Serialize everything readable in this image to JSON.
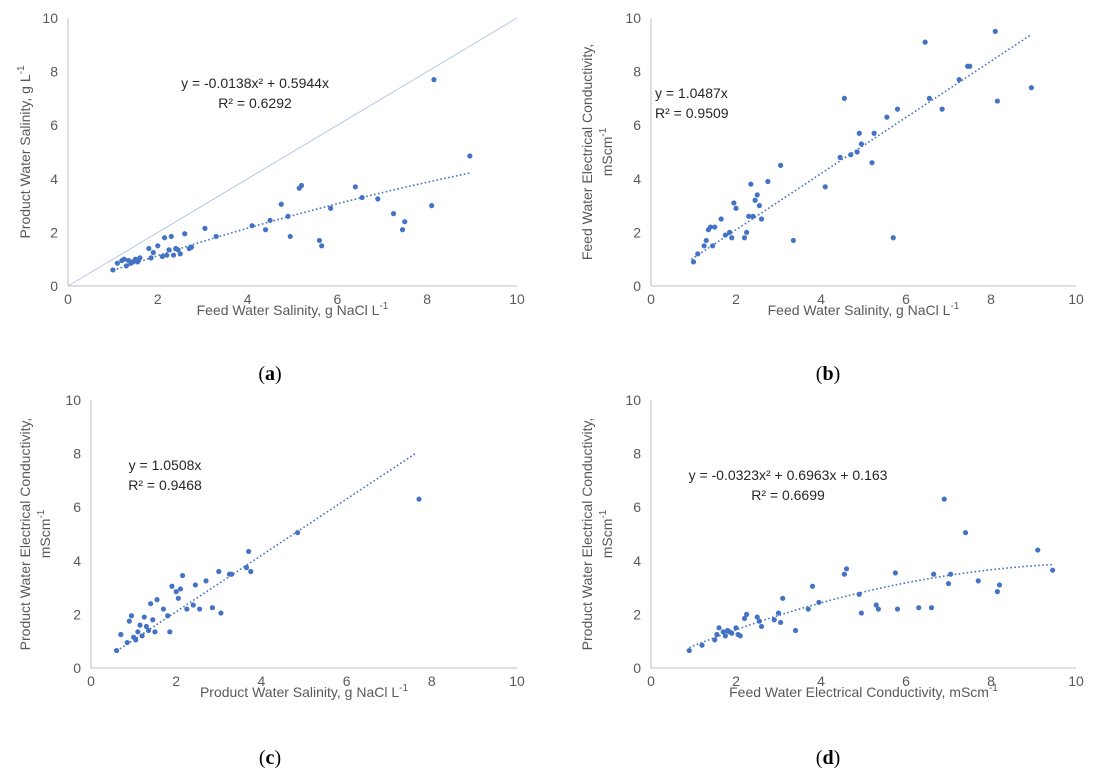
{
  "chart_data": [
    {
      "panel": "a",
      "type": "scatter",
      "xlabel": "Feed Water Salinity, g NaCl L",
      "xlabel_sup": "-1",
      "ylabel": "Product Water Salinity, g L",
      "ylabel_sup": "-1",
      "ylabel2": "",
      "xlim": [
        0,
        10
      ],
      "ylim": [
        0,
        10
      ],
      "xticks": [
        0,
        2,
        4,
        6,
        8,
        10
      ],
      "yticks": [
        0,
        2,
        4,
        6,
        8,
        10
      ],
      "grid": false,
      "equation": "y = -0.0138x² + 0.5944x",
      "r2": "R² = 0.6292",
      "trend": {
        "kind": "poly",
        "coef": [
          0,
          0.5944,
          -0.0138
        ],
        "xrange": [
          1.0,
          8.95
        ]
      },
      "identity_line": true,
      "x": [
        1.0,
        1.1,
        1.2,
        1.25,
        1.3,
        1.35,
        1.4,
        1.45,
        1.5,
        1.55,
        1.6,
        1.8,
        1.85,
        1.9,
        2.0,
        2.1,
        2.15,
        2.2,
        2.25,
        2.3,
        2.35,
        2.4,
        2.45,
        2.5,
        2.6,
        2.7,
        2.75,
        3.05,
        3.3,
        4.1,
        4.4,
        4.5,
        4.75,
        4.9,
        4.95,
        5.15,
        5.2,
        5.6,
        5.65,
        5.85,
        6.4,
        6.55,
        6.9,
        7.25,
        7.45,
        7.5,
        8.1,
        8.15,
        8.95
      ],
      "y": [
        0.6,
        0.85,
        0.95,
        1.0,
        0.75,
        0.95,
        0.85,
        0.9,
        1.0,
        0.9,
        1.05,
        1.4,
        1.05,
        1.25,
        1.5,
        1.1,
        1.8,
        1.15,
        1.35,
        1.85,
        1.15,
        1.4,
        1.35,
        1.2,
        1.95,
        1.4,
        1.45,
        2.15,
        1.85,
        2.25,
        2.1,
        2.45,
        3.05,
        2.6,
        1.85,
        3.65,
        3.75,
        1.7,
        1.5,
        2.9,
        3.7,
        3.3,
        3.25,
        2.7,
        2.1,
        2.4,
        3.0,
        7.7,
        4.85
      ]
    },
    {
      "panel": "b",
      "type": "scatter",
      "xlabel": "Feed Water Salinity, g NaCl L",
      "xlabel_sup": "-1",
      "ylabel": "Feed Water Electrical Conductivity,",
      "ylabel2": "mScm",
      "ylabel2_sup": "-1",
      "xlim": [
        0,
        10
      ],
      "ylim": [
        0,
        10
      ],
      "xticks": [
        0,
        2,
        4,
        6,
        8,
        10
      ],
      "yticks": [
        0,
        2,
        4,
        6,
        8,
        10
      ],
      "grid": false,
      "equation": "y = 1.0487x",
      "r2": "R² = 0.9509",
      "trend": {
        "kind": "poly",
        "coef": [
          0,
          1.0487
        ],
        "xrange": [
          0.95,
          8.95
        ]
      },
      "identity_line": false,
      "x": [
        1.0,
        1.1,
        1.25,
        1.3,
        1.35,
        1.4,
        1.45,
        1.5,
        1.65,
        1.75,
        1.85,
        1.9,
        1.95,
        2.0,
        2.2,
        2.25,
        2.3,
        2.35,
        2.4,
        2.45,
        2.5,
        2.55,
        2.6,
        2.75,
        3.05,
        3.35,
        4.1,
        4.45,
        4.55,
        4.7,
        4.85,
        4.9,
        4.95,
        5.2,
        5.25,
        5.55,
        5.7,
        5.8,
        6.45,
        6.55,
        6.85,
        7.25,
        7.45,
        7.5,
        8.1,
        8.15,
        8.95
      ],
      "y": [
        0.9,
        1.2,
        1.5,
        1.7,
        2.1,
        2.2,
        1.5,
        2.2,
        2.5,
        1.9,
        2.0,
        1.8,
        3.1,
        2.9,
        1.8,
        2.0,
        2.6,
        3.8,
        2.6,
        3.2,
        3.4,
        3.0,
        2.5,
        3.9,
        4.5,
        1.7,
        3.7,
        4.8,
        7.0,
        4.9,
        5.0,
        5.7,
        5.3,
        4.6,
        5.7,
        6.3,
        1.8,
        6.6,
        9.1,
        7.0,
        6.6,
        7.7,
        8.2,
        8.2,
        9.5,
        6.9,
        7.4
      ]
    },
    {
      "panel": "c",
      "type": "scatter",
      "xlabel": "Product Water Salinity, g NaCl L",
      "xlabel_sup": "-1",
      "ylabel": "Product Water Electrical Conductivity,",
      "ylabel2": "mScm",
      "ylabel2_sup": "-1",
      "xlim": [
        0,
        10
      ],
      "ylim": [
        0,
        10
      ],
      "xticks": [
        0,
        2,
        4,
        6,
        8,
        10
      ],
      "yticks": [
        0,
        2,
        4,
        6,
        8,
        10
      ],
      "grid": false,
      "equation": "y = 1.0508x",
      "r2": "R² = 0.9468",
      "trend": {
        "kind": "poly",
        "coef": [
          0,
          1.0508
        ],
        "xrange": [
          0.6,
          7.65
        ]
      },
      "identity_line": false,
      "x": [
        0.6,
        0.7,
        0.85,
        0.9,
        0.95,
        1.0,
        1.05,
        1.1,
        1.15,
        1.2,
        1.25,
        1.3,
        1.35,
        1.4,
        1.45,
        1.5,
        1.55,
        1.7,
        1.8,
        1.85,
        1.9,
        2.0,
        2.05,
        2.1,
        2.15,
        2.25,
        2.4,
        2.45,
        2.55,
        2.7,
        2.85,
        3.0,
        3.05,
        3.25,
        3.3,
        3.65,
        3.7,
        3.75,
        4.85,
        7.7
      ],
      "y": [
        0.65,
        1.25,
        0.95,
        1.75,
        1.95,
        1.15,
        1.05,
        1.35,
        1.6,
        1.2,
        1.9,
        1.55,
        1.4,
        2.4,
        1.8,
        1.35,
        2.55,
        2.2,
        1.95,
        1.35,
        3.05,
        2.85,
        2.6,
        2.95,
        3.45,
        2.2,
        2.35,
        3.1,
        2.2,
        3.25,
        2.25,
        3.6,
        2.05,
        3.5,
        3.5,
        3.75,
        4.35,
        3.6,
        5.05,
        6.3
      ]
    },
    {
      "panel": "d",
      "type": "scatter",
      "xlabel": "Feed Water Electrical Conductivity, mScm",
      "xlabel_sup": "-1",
      "ylabel": "Product Water Electrical Conductivity,",
      "ylabel2": "mScm",
      "ylabel2_sup": "-1",
      "xlim": [
        0,
        10
      ],
      "ylim": [
        0,
        10
      ],
      "xticks": [
        0,
        2,
        4,
        6,
        8,
        10
      ],
      "yticks": [
        0,
        2,
        4,
        6,
        8,
        10
      ],
      "grid": false,
      "equation": "y = -0.0323x² + 0.6963x + 0.163",
      "r2": "R² = 0.6699",
      "trend": {
        "kind": "poly",
        "coef": [
          0.163,
          0.6963,
          -0.0323
        ],
        "xrange": [
          0.9,
          9.45
        ]
      },
      "identity_line": false,
      "x": [
        0.9,
        1.2,
        1.5,
        1.55,
        1.6,
        1.7,
        1.75,
        1.8,
        1.85,
        1.9,
        2.0,
        2.05,
        2.1,
        2.2,
        2.25,
        2.5,
        2.55,
        2.6,
        2.9,
        3.0,
        3.05,
        3.1,
        3.4,
        3.7,
        3.8,
        3.95,
        4.55,
        4.6,
        4.9,
        4.95,
        5.3,
        5.35,
        5.75,
        5.8,
        6.3,
        6.6,
        6.65,
        6.9,
        7.0,
        7.05,
        7.4,
        7.7,
        8.15,
        8.2,
        9.1,
        9.45
      ],
      "y": [
        0.65,
        0.85,
        1.05,
        1.25,
        1.5,
        1.35,
        1.2,
        1.4,
        1.35,
        1.3,
        1.5,
        1.25,
        1.2,
        1.85,
        2.0,
        1.9,
        1.75,
        1.55,
        1.8,
        2.05,
        1.7,
        2.6,
        1.4,
        2.2,
        3.05,
        2.45,
        3.5,
        3.7,
        2.75,
        2.05,
        2.35,
        2.2,
        3.55,
        2.2,
        2.25,
        2.25,
        3.5,
        6.3,
        3.15,
        3.5,
        5.05,
        3.25,
        2.85,
        3.1,
        4.4,
        3.65
      ]
    }
  ]
}
